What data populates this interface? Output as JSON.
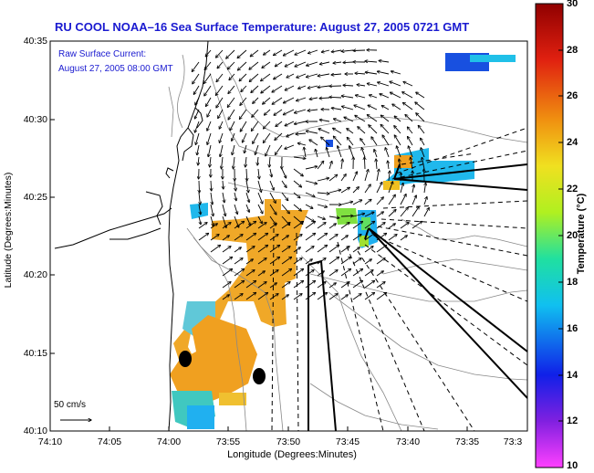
{
  "title": "RU COOL  NOAA–16  Sea Surface Temperature:  August 27, 2005 0721 GMT",
  "annotations": {
    "current_label": "Raw Surface Current:",
    "current_time": "August 27, 2005 08:00 GMT",
    "scale_label": "50 cm/s"
  },
  "axes": {
    "x_label": "Longitude (Degrees:Minutes)",
    "y_label": "Latitude (Degrees:Minutes)",
    "x_ticks": [
      "74:10",
      "74:05",
      "74:00",
      "73:55",
      "73:50",
      "73:45",
      "73:40",
      "73:35",
      "73:3"
    ],
    "y_ticks": [
      "40:35",
      "40:30",
      "40:25",
      "40:20",
      "40:15",
      "40:10"
    ]
  },
  "colorbar": {
    "label": "Temperature (°C)",
    "ticks": [
      "30",
      "28",
      "26",
      "24",
      "22",
      "20",
      "18",
      "16",
      "14",
      "12",
      "10"
    ],
    "range": [
      10,
      30
    ]
  },
  "colors": {
    "title_blue": "#1a1ad0",
    "sst_warm": "#f0a020",
    "sst_cool": "#20b0e8",
    "sst_cold": "#1040e0",
    "sst_green": "#80e040"
  }
}
